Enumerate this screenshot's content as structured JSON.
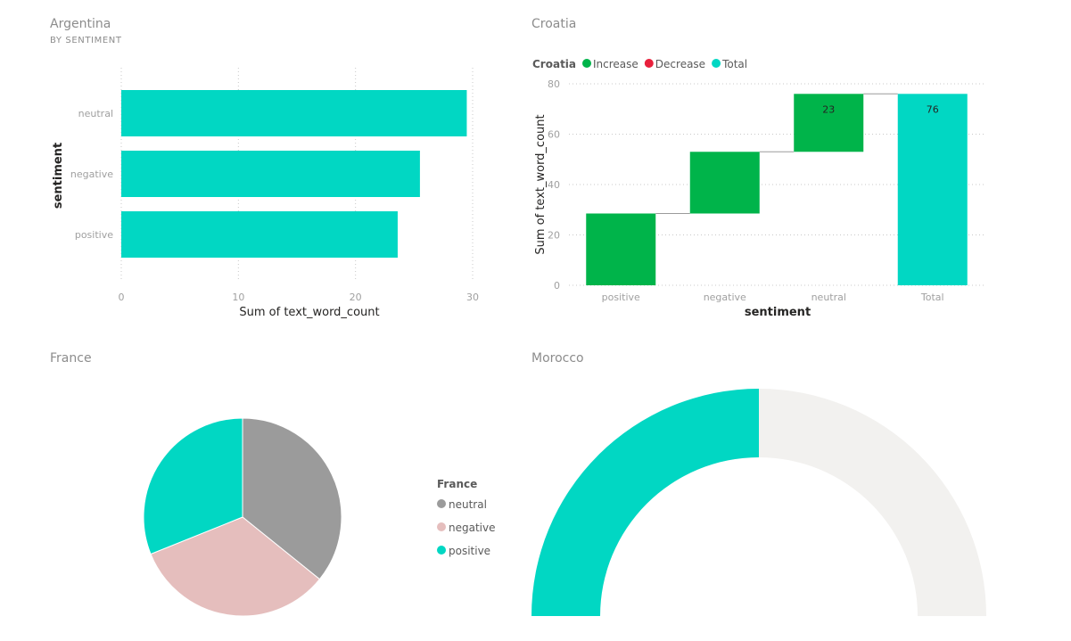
{
  "chart_data": [
    {
      "type": "bar",
      "orientation": "horizontal",
      "title": "Argentina",
      "subtitle": "BY SENTIMENT",
      "categories": [
        "neutral",
        "negative",
        "positive"
      ],
      "values": [
        29.5,
        25.5,
        23.6
      ],
      "xlabel": "Sum of text_word_count",
      "ylabel": "sentiment",
      "xlim": [
        0,
        30
      ],
      "xticks": [
        "0",
        "10",
        "20",
        "30"
      ],
      "grid": true,
      "color": "#01d7c3"
    },
    {
      "type": "waterfall",
      "title": "Croatia",
      "legend_title": "Croatia",
      "legend": [
        {
          "label": "Increase",
          "color": "#00b44a"
        },
        {
          "label": "Decrease",
          "color": "#e8203c"
        },
        {
          "label": "Total",
          "color": "#01d7c3"
        }
      ],
      "categories": [
        "positive",
        "negative",
        "neutral",
        "Total"
      ],
      "steps": [
        {
          "label": "positive",
          "start": 0,
          "end": 28.5,
          "kind": "Increase"
        },
        {
          "label": "negative",
          "start": 28.5,
          "end": 53,
          "kind": "Increase"
        },
        {
          "label": "neutral",
          "start": 53,
          "end": 76,
          "kind": "Increase"
        },
        {
          "label": "Total",
          "start": 0,
          "end": 76,
          "kind": "Total"
        }
      ],
      "data_labels": [
        "",
        "",
        "23",
        "76"
      ],
      "xlabel": "sentiment",
      "ylabel": "Sum of text_word_count",
      "ylim": [
        0,
        80
      ],
      "yticks": [
        "0",
        "20",
        "40",
        "60",
        "80"
      ],
      "grid": true,
      "legend_position": "top-left"
    },
    {
      "type": "pie",
      "title": "France",
      "legend_title": "France",
      "legend_position": "right",
      "slices": [
        {
          "label": "neutral",
          "value": 35.8,
          "color": "#9b9b9b"
        },
        {
          "label": "negative",
          "value": 33.1,
          "color": "#e5bebd"
        },
        {
          "label": "positive",
          "value": 31.1,
          "color": "#01d7c3"
        }
      ]
    },
    {
      "type": "gauge",
      "title": "Morocco",
      "fraction": 0.5,
      "fill_color": "#01d7c3",
      "track_color": "#f2f1ef"
    }
  ]
}
